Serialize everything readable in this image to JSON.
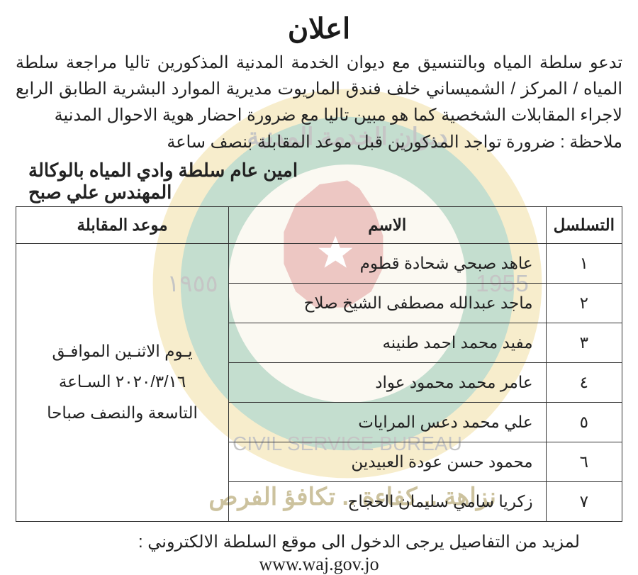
{
  "title": "اعلان",
  "intro": "تدعو سلطة المياه وبالتنسيق مع ديوان الخدمة المدنية المذكورين تاليا مراجعة سلطة المياه / المركز / الشميساني خلف فندق الماريوت مديرية الموارد البشرية الطابق الرابع لاجراء المقابلات الشخصية كما هو مبين تاليا مع ضرورة احضار هوية الاحوال المدنية",
  "note": "ملاحظة : ضرورة تواجد المذكورين قبل موعد المقابلة بنصف ساعة",
  "signature_line1": "امين عام سلطة وادي المياه بالوكالة",
  "signature_line2": "المهندس علي صبح",
  "table": {
    "headers": {
      "seq": "التسلسل",
      "name": "الاسم",
      "appt": "موعد المقابلة"
    },
    "appointment": "يـوم الاثنـين الموافـق ٢٠٢٠/٣/١٦ السـاعة التاسعة والنصف صباحا",
    "rows": [
      {
        "seq": "١",
        "name": "عاهد صبحي شحادة قطوم"
      },
      {
        "seq": "٢",
        "name": "ماجد عبدالله مصطفى الشيخ صلاح"
      },
      {
        "seq": "٣",
        "name": "مفيد محمد احمد طنينه"
      },
      {
        "seq": "٤",
        "name": "عامر محمد محمود عواد"
      },
      {
        "seq": "٥",
        "name": "علي محمد دعس المرايات"
      },
      {
        "seq": "٦",
        "name": "محمود حسن عودة العبيدين"
      },
      {
        "seq": "٧",
        "name": "زكريا سامي سليمان الحجاج"
      }
    ]
  },
  "footer": "لمزيد من التفاصيل يرجى الدخول الى موقع السلطة الالكتروني :",
  "url": "www.waj.gov.jo",
  "watermark_slogan": "نزاهة .. كفاءة .. تكافؤ الفرص",
  "colors": {
    "text": "#222222",
    "border": "#323232",
    "wm_green": "#2e8b57",
    "wm_yellow": "#e6c24a",
    "wm_red": "#c0392b",
    "wm_cream": "#f3ead1",
    "wm_slogan": "#8f7a2a"
  }
}
